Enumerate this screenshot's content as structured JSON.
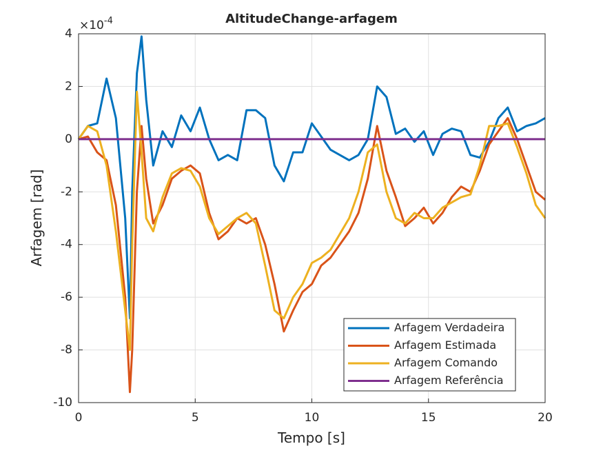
{
  "chart_data": {
    "type": "line",
    "title": "AltitudeChange-arfagem",
    "xlabel": "Tempo [s]",
    "ylabel": "Arfagem [rad]",
    "y_multiplier": {
      "base": "×10",
      "exponent": "-4"
    },
    "x": [
      0,
      0.4,
      0.8,
      1.2,
      1.6,
      2.0,
      2.2,
      2.3,
      2.5,
      2.7,
      2.9,
      3.2,
      3.6,
      4.0,
      4.4,
      4.8,
      5.2,
      5.6,
      6.0,
      6.4,
      6.8,
      7.2,
      7.6,
      8.0,
      8.4,
      8.8,
      9.2,
      9.6,
      10.0,
      10.4,
      10.8,
      11.2,
      11.6,
      12.0,
      12.4,
      12.8,
      13.2,
      13.6,
      14.0,
      14.4,
      14.8,
      15.2,
      15.6,
      16.0,
      16.4,
      16.8,
      17.2,
      17.6,
      18.0,
      18.4,
      18.8,
      19.2,
      19.6,
      20.0
    ],
    "series": [
      {
        "name": "Arfagem Verdadeira",
        "color": "#0072BD",
        "values": [
          0,
          0.5,
          0.6,
          2.3,
          0.8,
          -3,
          -6.8,
          -2,
          2.5,
          3.9,
          1.5,
          -1.0,
          0.3,
          -0.3,
          0.9,
          0.3,
          1.2,
          0.0,
          -0.8,
          -0.6,
          -0.8,
          1.1,
          1.1,
          0.8,
          -1.0,
          -1.6,
          -0.5,
          -0.5,
          0.6,
          0.1,
          -0.4,
          -0.6,
          -0.8,
          -0.6,
          0.0,
          2.0,
          1.6,
          0.2,
          0.4,
          -0.1,
          0.3,
          -0.6,
          0.2,
          0.4,
          0.3,
          -0.6,
          -0.7,
          -0.1,
          0.8,
          1.2,
          0.3,
          0.5,
          0.6,
          0.8
        ]
      },
      {
        "name": "Arfagem Estimada",
        "color": "#D95319",
        "values": [
          0,
          0.1,
          -0.5,
          -0.8,
          -2.5,
          -6,
          -9.6,
          -8,
          -2,
          0.5,
          -1.5,
          -3.2,
          -2.5,
          -1.5,
          -1.2,
          -1.0,
          -1.3,
          -2.8,
          -3.8,
          -3.5,
          -3.0,
          -3.2,
          -3.0,
          -4.0,
          -5.5,
          -7.3,
          -6.5,
          -5.8,
          -5.5,
          -4.8,
          -4.5,
          -4.0,
          -3.5,
          -2.8,
          -1.5,
          0.5,
          -1.2,
          -2.2,
          -3.3,
          -3.0,
          -2.6,
          -3.2,
          -2.8,
          -2.2,
          -1.8,
          -2.0,
          -1.2,
          -0.2,
          0.3,
          0.8,
          0.0,
          -1.0,
          -2.0,
          -2.3
        ]
      },
      {
        "name": "Arfagem Comando",
        "color": "#EDB120",
        "values": [
          0,
          0.5,
          0.3,
          -1.0,
          -3.5,
          -6.5,
          -8.0,
          -4,
          1.8,
          -0.5,
          -3.0,
          -3.5,
          -2.2,
          -1.3,
          -1.1,
          -1.2,
          -1.8,
          -3.0,
          -3.6,
          -3.3,
          -3.0,
          -2.8,
          -3.2,
          -4.8,
          -6.5,
          -6.8,
          -6.0,
          -5.5,
          -4.7,
          -4.5,
          -4.2,
          -3.6,
          -3.0,
          -2.0,
          -0.5,
          -0.2,
          -2.0,
          -3.0,
          -3.2,
          -2.8,
          -3.0,
          -3.0,
          -2.6,
          -2.4,
          -2.2,
          -2.1,
          -1.0,
          0.5,
          0.5,
          0.6,
          -0.3,
          -1.3,
          -2.5,
          -3.0
        ]
      },
      {
        "name": "Arfagem Referência",
        "color": "#7E2F8E",
        "values": [
          0,
          0,
          0,
          0,
          0,
          0,
          0,
          0,
          0,
          0,
          0,
          0,
          0,
          0,
          0,
          0,
          0,
          0,
          0,
          0,
          0,
          0,
          0,
          0,
          0,
          0,
          0,
          0,
          0,
          0,
          0,
          0,
          0,
          0,
          0,
          0,
          0,
          0,
          0,
          0,
          0,
          0,
          0,
          0,
          0,
          0,
          0,
          0,
          0,
          0,
          0,
          0,
          0,
          0
        ]
      }
    ],
    "xlim": [
      0,
      20
    ],
    "xticks": [
      0,
      5,
      10,
      15,
      20
    ],
    "ylim": [
      -10,
      4
    ],
    "yticks": [
      -10,
      -8,
      -6,
      -4,
      -2,
      0,
      2,
      4
    ],
    "grid": true,
    "legend": "lower right"
  }
}
